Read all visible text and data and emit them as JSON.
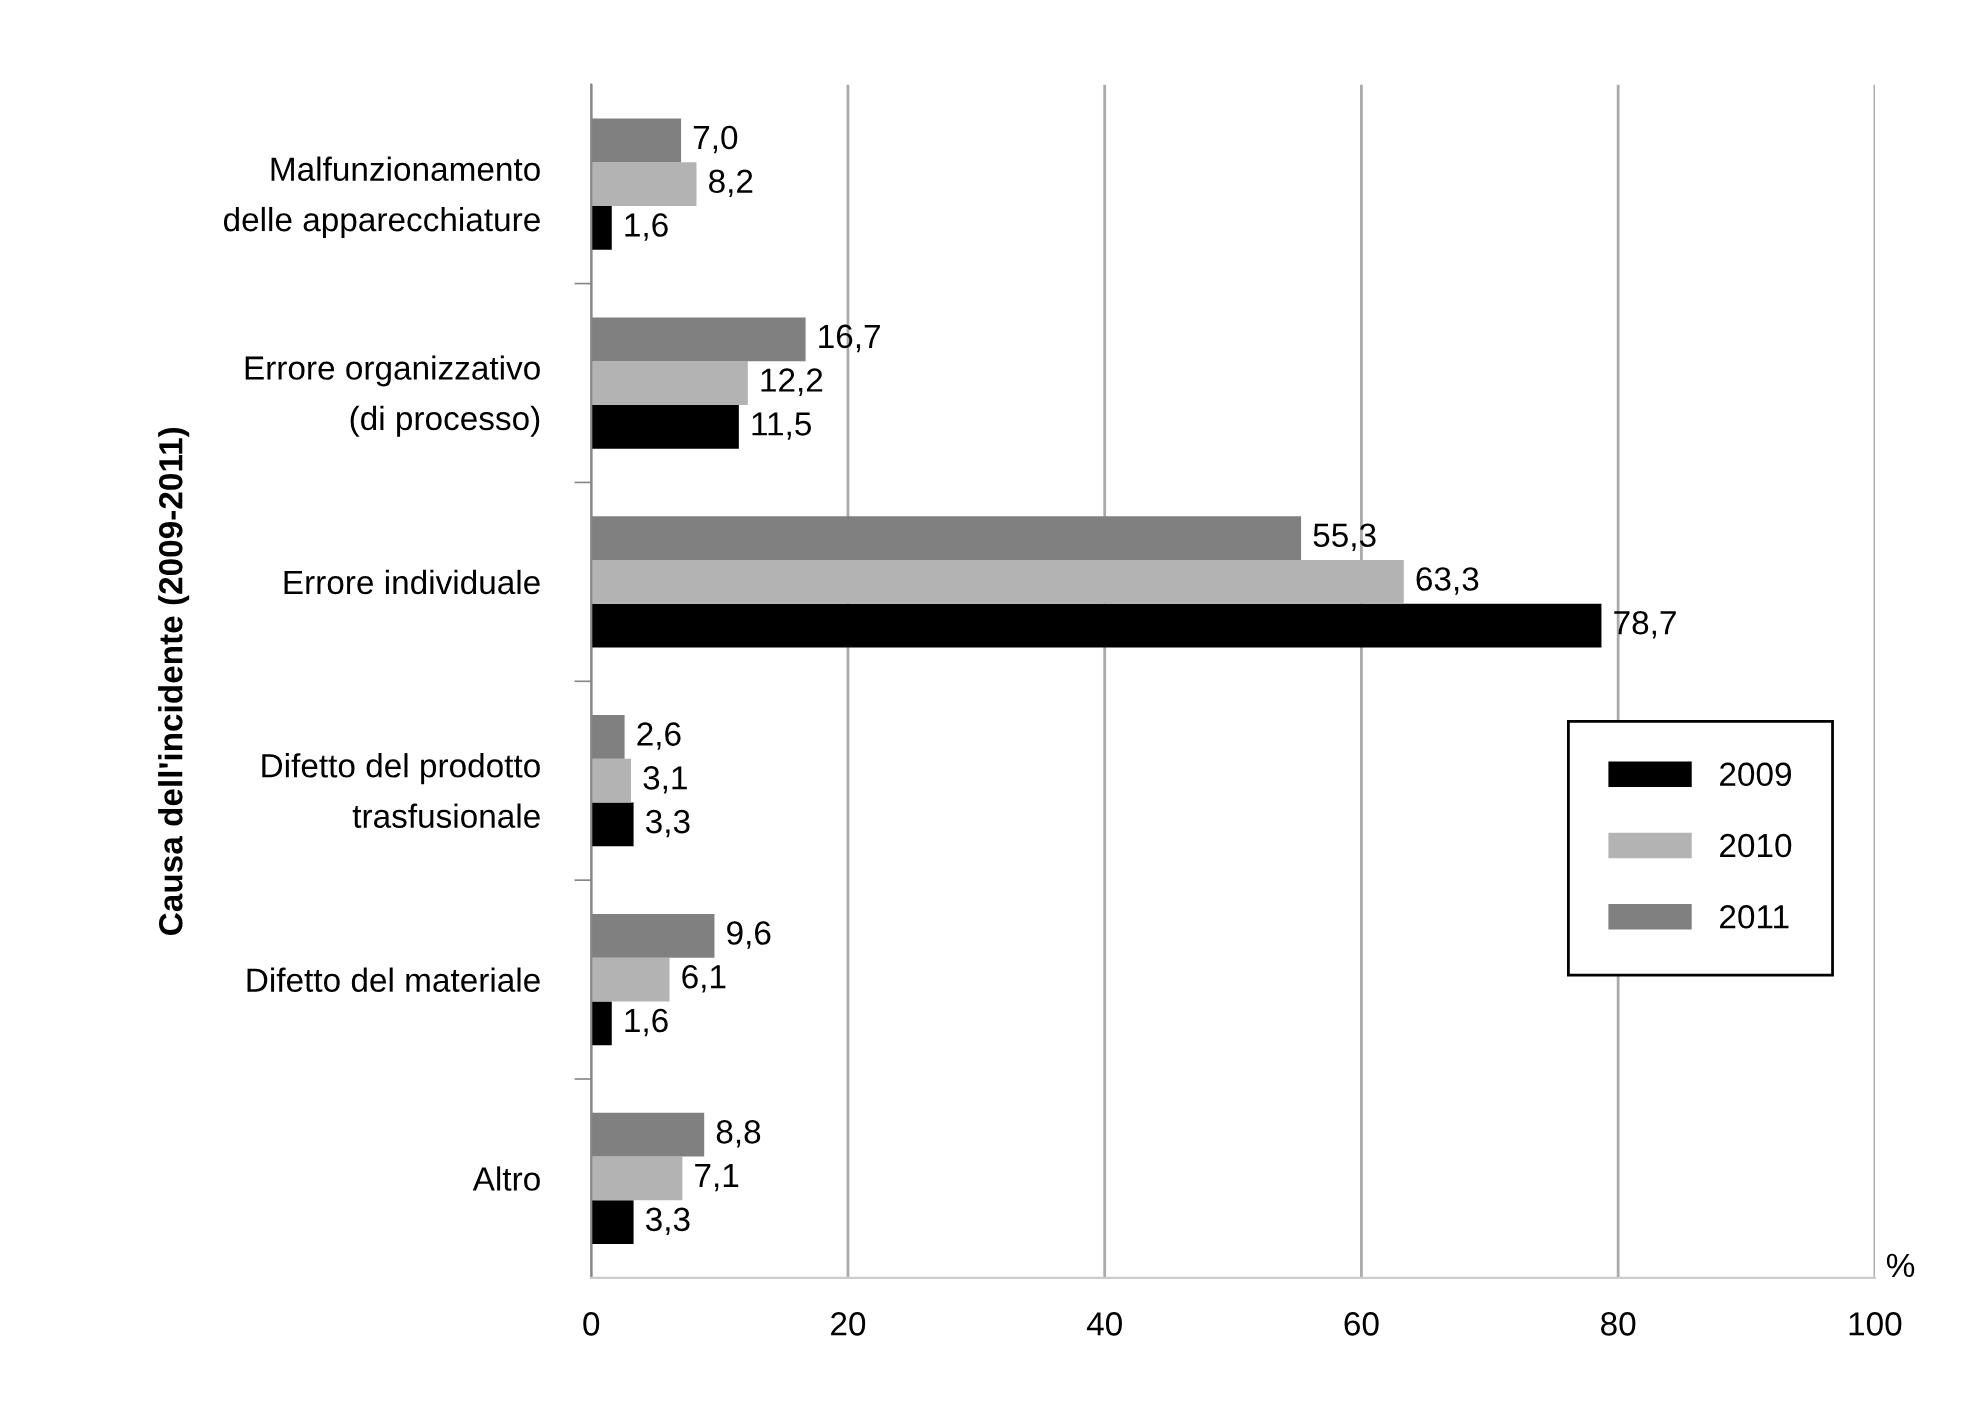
{
  "chart_data": {
    "type": "bar",
    "orientation": "horizontal",
    "categories": [
      "Malfunzionamento\ndelle apparecchiature",
      "Errore organizzativo\n(di processo)",
      "Errore individuale",
      "Difetto del prodotto\ntrasfusionale",
      "Difetto del materiale",
      "Altro"
    ],
    "series": [
      {
        "name": "2009",
        "color": "#000000",
        "values": [
          1.6,
          11.5,
          78.7,
          3.3,
          1.6,
          3.3
        ],
        "value_labels": [
          "1,6",
          "11,5",
          "78,7",
          "3,3",
          "1,6",
          "3,3"
        ]
      },
      {
        "name": "2010",
        "color": "#b3b3b3",
        "values": [
          8.2,
          12.2,
          63.3,
          3.1,
          6.1,
          7.1
        ],
        "value_labels": [
          "8,2",
          "12,2",
          "63,3",
          "3,1",
          "6,1",
          "7,1"
        ]
      },
      {
        "name": "2011",
        "color": "#808080",
        "values": [
          7.0,
          16.7,
          55.3,
          2.6,
          9.6,
          8.8
        ],
        "value_labels": [
          "7,0",
          "16,7",
          "55,3",
          "2,6",
          "9,6",
          "8,8"
        ]
      }
    ],
    "xlabel": "%",
    "ylabel": "Causa dell'incidente (2009-2011)",
    "xlim": [
      0,
      100
    ],
    "xticks": [
      0,
      20,
      40,
      60,
      80,
      100
    ],
    "grid": "x",
    "legend": "right"
  }
}
